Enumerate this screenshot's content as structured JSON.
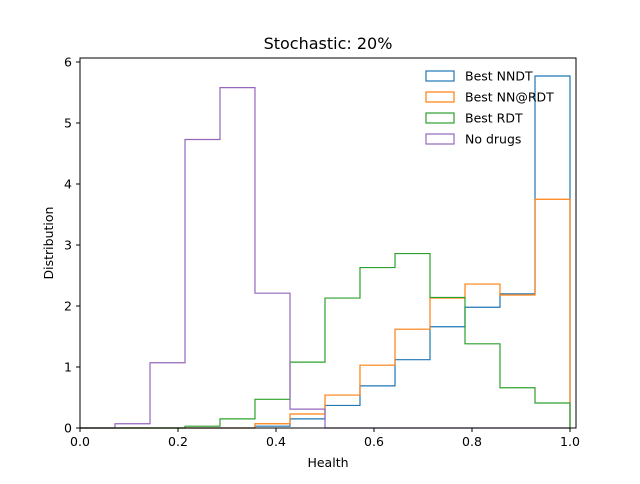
{
  "chart_data": {
    "type": "histogram-step",
    "title": "Stochastic: 20%",
    "xlabel": "Health",
    "ylabel": "Distribution",
    "xlim": [
      0.0,
      1.0
    ],
    "ylim": [
      0,
      6.1
    ],
    "xticks": [
      0.0,
      0.2,
      0.4,
      0.6,
      0.8,
      1.0
    ],
    "xtick_labels": [
      "0.0",
      "0.2",
      "0.4",
      "0.6",
      "0.8",
      "1.0"
    ],
    "yticks": [
      0,
      1,
      2,
      3,
      4,
      5,
      6
    ],
    "ytick_labels": [
      "0",
      "1",
      "2",
      "3",
      "4",
      "5",
      "6"
    ],
    "grid": false,
    "legend_position": "top-right",
    "series": [
      {
        "name": "Best NNDT",
        "color": "#1f77b4",
        "edges": [
          0.0,
          0.0714,
          0.1429,
          0.2143,
          0.2857,
          0.3571,
          0.4286,
          0.5,
          0.5714,
          0.6429,
          0.7143,
          0.7857,
          0.8571,
          0.9286,
          1.0
        ],
        "values": [
          0,
          0,
          0,
          0,
          0,
          0.03,
          0.15,
          0.37,
          0.69,
          1.12,
          1.66,
          1.98,
          2.2,
          5.77
        ]
      },
      {
        "name": "Best NN@RDT",
        "color": "#ff7f0e",
        "edges": [
          0.0,
          0.0714,
          0.1429,
          0.2143,
          0.2857,
          0.3571,
          0.4286,
          0.5,
          0.5714,
          0.6429,
          0.7143,
          0.7857,
          0.8571,
          0.9286,
          1.0
        ],
        "values": [
          0,
          0,
          0,
          0,
          0,
          0.07,
          0.23,
          0.54,
          1.03,
          1.62,
          2.13,
          2.36,
          2.18,
          3.75
        ]
      },
      {
        "name": "Best RDT",
        "color": "#2ca02c",
        "edges": [
          0.0,
          0.0714,
          0.1429,
          0.2143,
          0.2857,
          0.3571,
          0.4286,
          0.5,
          0.5714,
          0.6429,
          0.7143,
          0.7857,
          0.8571,
          0.9286,
          1.0
        ],
        "values": [
          0,
          0,
          0,
          0.03,
          0.15,
          0.47,
          1.08,
          2.13,
          2.63,
          2.86,
          2.14,
          1.38,
          0.66,
          0.41
        ]
      },
      {
        "name": "No drugs",
        "color": "#9467bd",
        "edges": [
          0.0,
          0.0714,
          0.1429,
          0.2143,
          0.2857,
          0.3571,
          0.4286,
          0.5,
          0.5714,
          0.6429,
          0.7143,
          0.7857,
          0.8571,
          0.9286,
          1.0
        ],
        "values": [
          0,
          0.07,
          1.07,
          4.73,
          5.58,
          2.21,
          0.31,
          0,
          0,
          0,
          0,
          0,
          0,
          0
        ]
      }
    ]
  }
}
